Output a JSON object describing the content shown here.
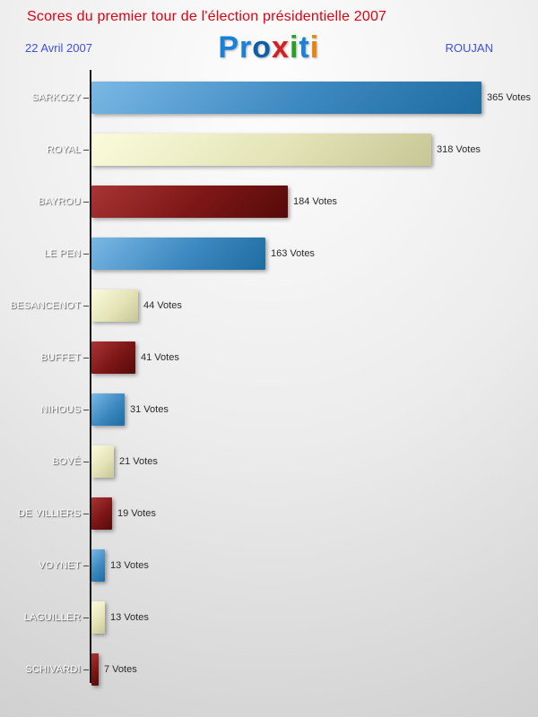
{
  "header": {
    "title": "Scores du premier tour de l'élection présidentielle 2007",
    "date": "22 Avril 2007",
    "location": "ROUJAN",
    "logo": {
      "name": "Proxiti",
      "letters": [
        {
          "char": "P",
          "color": "#1c80d8"
        },
        {
          "char": "r",
          "color": "#1c80d8"
        },
        {
          "char": "o",
          "color": "#0f5fa8"
        },
        {
          "char": "x",
          "color": "#d42020"
        },
        {
          "char": "i",
          "color": "#28a028"
        },
        {
          "char": "t",
          "color": "#1c80d8"
        },
        {
          "char": "i",
          "color": "#e8820c"
        }
      ]
    }
  },
  "chart_data": {
    "type": "bar",
    "orientation": "horizontal",
    "title": "Scores du premier tour de l'élection présidentielle 2007",
    "value_suffix": "Votes",
    "categories": [
      "SARKOZY",
      "ROYAL",
      "BAYROU",
      "LE PEN",
      "BESANCENOT",
      "BUFFET",
      "NIHOUS",
      "BOVÉ",
      "DE VILLIERS",
      "VOYNET",
      "LAGUILLER",
      "SCHIVARDI"
    ],
    "values": [
      365,
      318,
      184,
      163,
      44,
      41,
      31,
      21,
      19,
      13,
      13,
      7
    ],
    "bar_colors": [
      "blue",
      "cream",
      "darkred",
      "blue",
      "cream",
      "darkred",
      "blue",
      "cream",
      "darkred",
      "blue",
      "cream",
      "darkred"
    ],
    "palette": {
      "blue": {
        "from": "#7ab8e4",
        "mid": "#3c88c0",
        "to": "#1e6ca0"
      },
      "cream": {
        "from": "#fbfbdc",
        "mid": "#e4e4b8",
        "to": "#c6c696"
      },
      "darkred": {
        "from": "#a83434",
        "mid": "#7c1616",
        "to": "#560a0a"
      }
    },
    "xlim": [
      0,
      365
    ],
    "legend": "none",
    "grid": "off"
  }
}
